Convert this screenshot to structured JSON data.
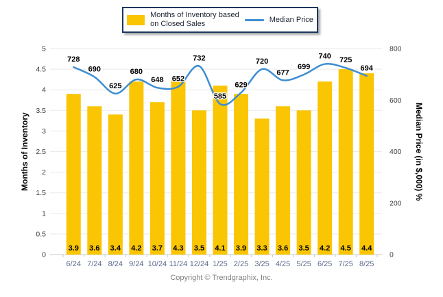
{
  "legend": {
    "bar_label_line1": "Months of Inventory based",
    "bar_label_line2": "on Closed Sales",
    "line_label": "Median Price"
  },
  "footer": {
    "copyright": "Copyright © Trendgraphix, Inc."
  },
  "colors": {
    "bar": "#FAC503",
    "line": "#3D8DD3",
    "legend_border": "#17375E",
    "gridline": "#EAEAEA",
    "axis_line": "#C9C9C9",
    "x_label": "#5A6B8C"
  },
  "chart_data": {
    "type": "bar",
    "subtype": "bar-line-combo",
    "title": "",
    "categories": [
      "6/24",
      "7/24",
      "8/24",
      "9/24",
      "10/24",
      "11/24",
      "12/24",
      "1/25",
      "2/25",
      "3/25",
      "4/25",
      "5/25",
      "6/25",
      "7/25",
      "8/25"
    ],
    "series": [
      {
        "name": "Months of Inventory based on Closed Sales",
        "type": "bar",
        "axis": "left",
        "color": "#FAC503",
        "values": [
          3.9,
          3.6,
          3.4,
          4.2,
          3.7,
          4.3,
          3.5,
          4.1,
          3.9,
          3.3,
          3.6,
          3.5,
          4.2,
          4.5,
          4.4
        ]
      },
      {
        "name": "Median Price",
        "type": "line",
        "axis": "right",
        "color": "#3D8DD3",
        "values": [
          728,
          690,
          625,
          680,
          648,
          652,
          732,
          585,
          629,
          720,
          677,
          699,
          740,
          725,
          694
        ]
      }
    ],
    "left_axis": {
      "title": "Months of Inventory",
      "min": 0,
      "max": 5,
      "step": 0.5,
      "ticks": [
        "0",
        "0.5",
        "1",
        "1.5",
        "2",
        "2.5",
        "3",
        "3.5",
        "4",
        "4.5",
        "5"
      ]
    },
    "right_axis": {
      "title": "Median Price (in $,000) %",
      "min": 0,
      "max": 800,
      "step": 200,
      "ticks": [
        "0",
        "200",
        "400",
        "600",
        "800"
      ]
    },
    "grid": "horizontal",
    "legend_position": "top-center"
  }
}
